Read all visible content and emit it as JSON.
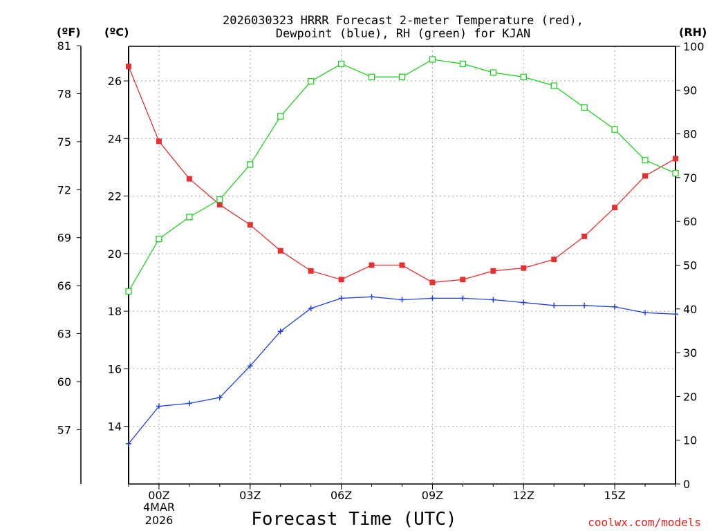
{
  "chart_data": {
    "type": "line",
    "title_line1": "2026030323 HRRR Forecast 2-meter Temperature (red),",
    "title_line2": "Dewpoint (blue), RH (green) for KJAN",
    "xlabel": "Forecast Time (UTC)",
    "credit": "coolwx.com/models",
    "units": {
      "fahrenheit": "(ºF)",
      "celsius": "(ºC)",
      "rh": "(RH)"
    },
    "x": [
      "23Z",
      "00Z",
      "01Z",
      "02Z",
      "03Z",
      "04Z",
      "05Z",
      "06Z",
      "07Z",
      "08Z",
      "09Z",
      "10Z",
      "11Z",
      "12Z",
      "13Z",
      "14Z",
      "15Z",
      "16Z",
      "17Z"
    ],
    "x_tick_labels": [
      "00Z",
      "03Z",
      "06Z",
      "09Z",
      "12Z",
      "15Z"
    ],
    "x_date_labels": [
      "4MAR",
      "2026"
    ],
    "axes": {
      "celsius": {
        "min": 12,
        "max": 27.2,
        "ticks": [
          14,
          16,
          18,
          20,
          22,
          24,
          26
        ]
      },
      "fahrenheit": {
        "ticks": [
          57,
          60,
          63,
          66,
          69,
          72,
          75,
          78,
          81
        ]
      },
      "rh": {
        "min": 0,
        "max": 100,
        "ticks": [
          0,
          10,
          20,
          30,
          40,
          50,
          60,
          70,
          80,
          90,
          100
        ]
      }
    },
    "series": [
      {
        "name": "Temperature",
        "color": "#e83030",
        "axis": "celsius",
        "marker": "filled-square",
        "values": [
          26.5,
          23.9,
          22.6,
          21.7,
          21.0,
          20.1,
          19.4,
          19.1,
          19.6,
          19.6,
          19.0,
          19.1,
          19.4,
          19.5,
          19.8,
          20.6,
          21.6,
          22.7,
          23.3
        ]
      },
      {
        "name": "Dewpoint",
        "color": "#2040e0",
        "axis": "celsius",
        "marker": "plus",
        "values": [
          13.4,
          14.7,
          14.8,
          15.0,
          16.1,
          17.3,
          18.1,
          18.45,
          18.5,
          18.4,
          18.45,
          18.45,
          18.4,
          18.3,
          18.2,
          18.2,
          18.15,
          17.95,
          17.9
        ]
      },
      {
        "name": "RH",
        "color": "#20d020",
        "axis": "rh",
        "marker": "open-square",
        "values": [
          44,
          56,
          61,
          65,
          73,
          84,
          92,
          96,
          93,
          93,
          97,
          96,
          94,
          93,
          91,
          86,
          81,
          74,
          71
        ]
      }
    ]
  }
}
